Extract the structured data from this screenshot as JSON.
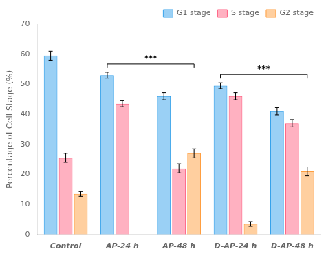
{
  "chart_data": {
    "type": "bar",
    "categories": [
      "Control",
      "AP-24 h",
      "AP-48 h",
      "D-AP-24 h",
      "D-AP-48 h"
    ],
    "series": [
      {
        "name": "G1 stage",
        "values": [
          59.5,
          53.0,
          46.0,
          49.5,
          41.0
        ],
        "errors": [
          1.5,
          1.0,
          1.2,
          1.0,
          1.2
        ]
      },
      {
        "name": "S stage",
        "values": [
          25.5,
          43.5,
          22.0,
          46.0,
          37.0
        ],
        "errors": [
          1.5,
          1.0,
          1.5,
          1.2,
          1.2
        ]
      },
      {
        "name": "G2 stage",
        "values": [
          13.5,
          null,
          27.0,
          3.5,
          21.0
        ],
        "errors": [
          0.8,
          null,
          1.5,
          0.8,
          1.5
        ]
      }
    ],
    "ylabel": "Percentage of Cell Stage (%)",
    "ylim": [
      0,
      70
    ],
    "yticks": [
      0,
      10,
      20,
      30,
      40,
      50,
      60,
      70
    ],
    "grid": false,
    "legend": "upper right",
    "annotations": [
      {
        "text": "***",
        "from": "AP-24 h",
        "to": "AP-48 h"
      },
      {
        "text": "***",
        "from": "D-AP-24 h",
        "to": "D-AP-48 h"
      }
    ]
  }
}
